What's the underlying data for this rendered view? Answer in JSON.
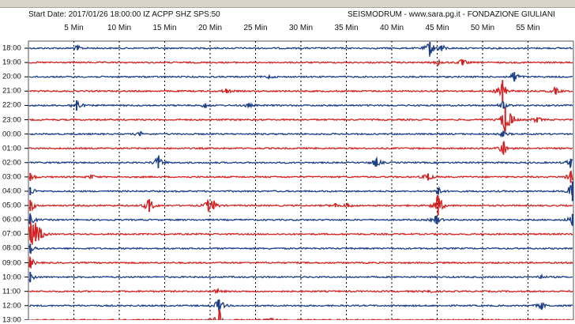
{
  "header": {
    "left_text": "Start Date: 2017/01/26 18:00:00 IZ ACPP SHZ SPS:50",
    "right_text": "SEISMODRUM - www.sara.pg.it - FONDAZIONE GIULIANI"
  },
  "chart_data": {
    "type": "line",
    "title": "",
    "xlabel": "",
    "ylabel": "",
    "x_unit": "min",
    "xlim": [
      0,
      60
    ],
    "grid": "vertical dashed lines every 5 min",
    "colors": [
      "#1d3f86",
      "#d32121"
    ],
    "minute_ticks": [
      {
        "minute": 5,
        "label": "5 Min"
      },
      {
        "minute": 10,
        "label": "10 Min"
      },
      {
        "minute": 15,
        "label": "15 Min"
      },
      {
        "minute": 20,
        "label": "20 Min"
      },
      {
        "minute": 25,
        "label": "25 Min"
      },
      {
        "minute": 30,
        "label": "30 Min"
      },
      {
        "minute": 35,
        "label": "35 Min"
      },
      {
        "minute": 40,
        "label": "40 Min"
      },
      {
        "minute": 45,
        "label": "45 Min"
      },
      {
        "minute": 50,
        "label": "50 Min"
      },
      {
        "minute": 55,
        "label": "55 Min"
      }
    ],
    "traces": [
      {
        "hour": "18:00",
        "color": "blue",
        "events": [
          {
            "minute": 5.4,
            "amp": 0.5
          },
          {
            "minute": 44.2,
            "amp": 1.6
          },
          {
            "minute": 45.5,
            "amp": 0.7
          }
        ]
      },
      {
        "hour": "19:00",
        "color": "red",
        "events": [
          {
            "minute": 47.8,
            "amp": 0.7
          },
          {
            "minute": 45.2,
            "amp": 0.5
          }
        ]
      },
      {
        "hour": "20:00",
        "color": "blue",
        "events": [
          {
            "minute": 26.5,
            "amp": 0.3
          },
          {
            "minute": 53.5,
            "amp": 1.2
          }
        ]
      },
      {
        "hour": "21:00",
        "color": "red",
        "events": [
          {
            "minute": 21.8,
            "amp": 0.5
          },
          {
            "minute": 52.2,
            "amp": 2.8
          },
          {
            "minute": 58.0,
            "amp": 0.7
          }
        ]
      },
      {
        "hour": "22:00",
        "color": "blue",
        "events": [
          {
            "minute": 5.3,
            "amp": 1.3
          },
          {
            "minute": 19.5,
            "amp": 0.5
          },
          {
            "minute": 24.2,
            "amp": 0.4
          },
          {
            "minute": 52.3,
            "amp": 0.8
          }
        ]
      },
      {
        "hour": "23:00",
        "color": "red",
        "events": [
          {
            "minute": 52.5,
            "amp": 3.0
          },
          {
            "minute": 53.2,
            "amp": 0.9
          },
          {
            "minute": 56.0,
            "amp": 0.6
          }
        ]
      },
      {
        "hour": "00:00",
        "color": "blue",
        "events": [
          {
            "minute": 12.3,
            "amp": 0.4
          },
          {
            "minute": 52.3,
            "amp": 0.6
          }
        ]
      },
      {
        "hour": "01:00",
        "color": "red",
        "events": [
          {
            "minute": 52.3,
            "amp": 1.6
          }
        ]
      },
      {
        "hour": "02:00",
        "color": "blue",
        "events": [
          {
            "minute": 14.3,
            "amp": 1.4
          },
          {
            "minute": 38.3,
            "amp": 1.0
          },
          {
            "minute": 59.7,
            "amp": 1.0
          }
        ]
      },
      {
        "hour": "03:00",
        "color": "red",
        "events": [
          {
            "minute": 0.2,
            "amp": 1.0
          },
          {
            "minute": 7.0,
            "amp": 0.4
          },
          {
            "minute": 44.0,
            "amp": 0.9
          },
          {
            "minute": 59.7,
            "amp": 1.5
          }
        ]
      },
      {
        "hour": "04:00",
        "color": "blue",
        "events": [
          {
            "minute": 0.2,
            "amp": 1.0
          },
          {
            "minute": 45.1,
            "amp": 0.8
          },
          {
            "minute": 59.9,
            "amp": 2.5
          }
        ]
      },
      {
        "hour": "05:00",
        "color": "red",
        "events": [
          {
            "minute": 0.2,
            "amp": 1.4
          },
          {
            "minute": 13.3,
            "amp": 1.6
          },
          {
            "minute": 19.8,
            "amp": 1.1
          },
          {
            "minute": 20.4,
            "amp": 0.9
          },
          {
            "minute": 33.8,
            "amp": 0.4
          },
          {
            "minute": 35.2,
            "amp": 0.4
          },
          {
            "minute": 45.1,
            "amp": 2.5
          }
        ]
      },
      {
        "hour": "06:00",
        "color": "blue",
        "events": [
          {
            "minute": 0.2,
            "amp": 1.2
          },
          {
            "minute": 44.9,
            "amp": 1.0
          },
          {
            "minute": 59.9,
            "amp": 1.5
          }
        ]
      },
      {
        "hour": "07:00",
        "color": "red",
        "events": [
          {
            "minute": 0.3,
            "amp": 2.2
          },
          {
            "minute": 0.8,
            "amp": 1.8
          },
          {
            "minute": 1.4,
            "amp": 1.0
          }
        ]
      },
      {
        "hour": "08:00",
        "color": "blue",
        "events": [
          {
            "minute": 0.2,
            "amp": 1.2
          }
        ]
      },
      {
        "hour": "09:00",
        "color": "red",
        "events": [
          {
            "minute": 0.2,
            "amp": 1.2
          }
        ]
      },
      {
        "hour": "10:00",
        "color": "blue",
        "events": [
          {
            "minute": 0.2,
            "amp": 1.3
          },
          {
            "minute": 56.4,
            "amp": 0.4
          }
        ]
      },
      {
        "hour": "11:00",
        "color": "red",
        "events": [
          {
            "minute": 20.8,
            "amp": 0.4
          },
          {
            "minute": 44.0,
            "amp": 0.3
          }
        ]
      },
      {
        "hour": "12:00",
        "color": "blue",
        "events": [
          {
            "minute": 21.0,
            "amp": 1.6
          },
          {
            "minute": 56.5,
            "amp": 0.7
          }
        ]
      },
      {
        "hour": "13:00",
        "color": "red",
        "events": [
          {
            "minute": 21.0,
            "amp": 2.5
          },
          {
            "minute": 26.8,
            "amp": 0.5
          }
        ]
      }
    ]
  }
}
